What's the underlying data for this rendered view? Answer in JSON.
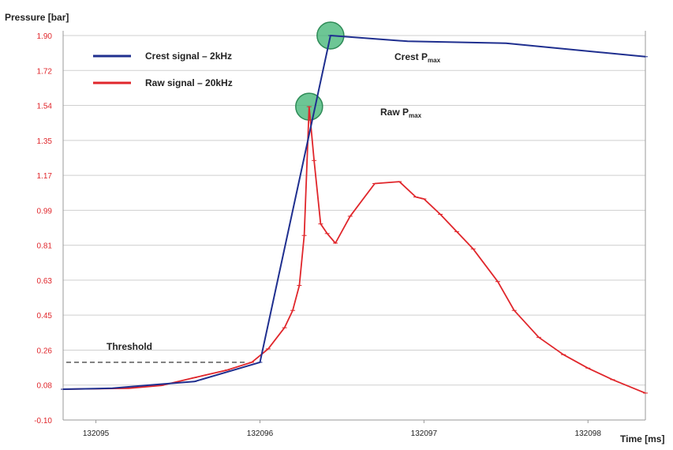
{
  "chart_data": {
    "type": "line",
    "ylabel": "Pressure [bar]",
    "xlabel": "Time [ms]",
    "yticks": [
      "1.90",
      "1.72",
      "1.54",
      "1.35",
      "1.17",
      "0.99",
      "0.81",
      "0.63",
      "0.45",
      "0.26",
      "0.08",
      "-0.10"
    ],
    "xticks": [
      "132095",
      "132096",
      "132097",
      "132098"
    ],
    "ylim": [
      -0.1,
      1.9
    ],
    "xlim": [
      132094.8,
      132098.35
    ],
    "grid": "horizontal",
    "legend_position": "top-left",
    "colors": {
      "crest": "#1f2f8f",
      "raw": "#e0262b",
      "highlight": "#3cb371"
    },
    "series": [
      {
        "name": "Crest signal – 2kHz",
        "color": "#1f2f8f",
        "x": [
          132094.8,
          132095.1,
          132095.3,
          132095.6,
          132096.0,
          132096.43,
          132096.9,
          132097.5,
          132098.35
        ],
        "y": [
          0.06,
          0.065,
          0.08,
          0.1,
          0.2,
          1.9,
          1.87,
          1.86,
          1.79
        ]
      },
      {
        "name": "Raw signal – 20kHz",
        "color": "#e0262b",
        "x": [
          132094.8,
          132095.2,
          132095.4,
          132095.6,
          132095.8,
          132095.95,
          132096.05,
          132096.15,
          132096.2,
          132096.24,
          132096.27,
          132096.3,
          132096.33,
          132096.37,
          132096.41,
          132096.46,
          132096.55,
          132096.7,
          132096.85,
          132096.95,
          132097.0,
          132097.1,
          132097.2,
          132097.3,
          132097.45,
          132097.55,
          132097.7,
          132097.85,
          132098.0,
          132098.15,
          132098.35
        ],
        "y": [
          0.06,
          0.065,
          0.08,
          0.12,
          0.16,
          0.2,
          0.27,
          0.38,
          0.47,
          0.6,
          0.86,
          1.53,
          1.25,
          0.92,
          0.87,
          0.82,
          0.96,
          1.13,
          1.14,
          1.06,
          1.05,
          0.97,
          0.88,
          0.79,
          0.62,
          0.47,
          0.33,
          0.24,
          0.17,
          0.11,
          0.04
        ]
      }
    ],
    "threshold": {
      "label": "Threshold",
      "y": 0.2,
      "x_start": 132094.8,
      "x_end": 132096.0
    },
    "annotations": [
      {
        "text": "Crest P",
        "sub": "max",
        "x": 132096.43,
        "y": 1.9
      },
      {
        "text": "Raw P",
        "sub": "max",
        "x": 132096.3,
        "y": 1.53
      }
    ]
  }
}
